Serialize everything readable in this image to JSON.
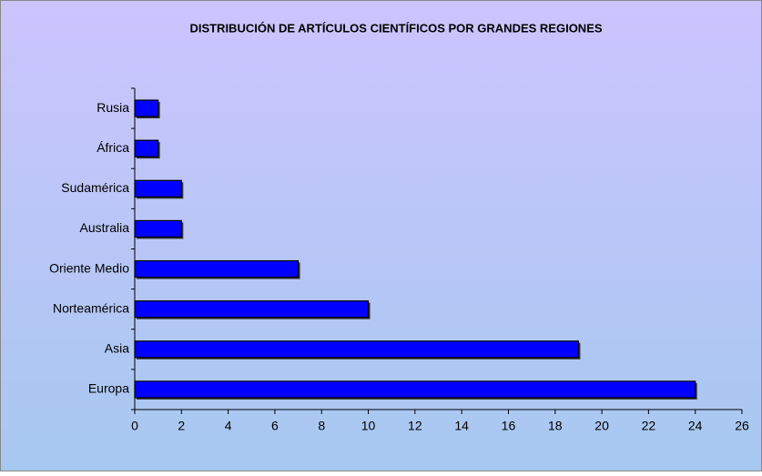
{
  "chart_data": {
    "type": "bar",
    "orientation": "horizontal",
    "title": "DISTRIBUCIÓN DE ARTÍCULOS CIENTÍFICOS POR GRANDES REGIONES",
    "categories": [
      "Europa",
      "Asia",
      "Norteamérica",
      "Oriente Medio",
      "Australia",
      "Sudamérica",
      "África",
      "Rusia"
    ],
    "values": [
      24,
      19,
      10,
      7,
      2,
      2,
      1,
      1
    ],
    "color": "#0000ff",
    "xlim": [
      0,
      26
    ],
    "xticks": [
      0,
      2,
      4,
      6,
      8,
      10,
      12,
      14,
      16,
      18,
      20,
      22,
      24,
      26
    ],
    "grid": false
  }
}
